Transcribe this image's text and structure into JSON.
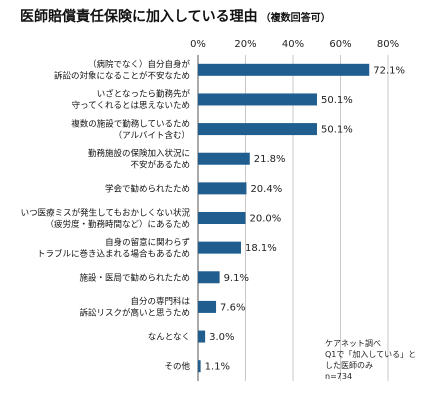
{
  "chart_data": {
    "type": "bar",
    "orientation": "horizontal",
    "title": "医師賠償責任保険に加入している理由",
    "subtitle": "（複数回答可）",
    "xlim": [
      0,
      80
    ],
    "xticks": [
      "0%",
      "20%",
      "40%",
      "60%",
      "80%"
    ],
    "grid": true,
    "bar_color": "#1f5e8e",
    "categories": [
      "（病院でなく）自分自身が\n訴訟の対象になることが不安なため",
      "いざとなったら勤務先が\n守ってくれるとは思えないため",
      "複数の施設で勤務しているため\n（アルバイト含む）",
      "勤務施設の保険加入状況に\n不安があるため",
      "学会で勧められたため",
      "いつ医療ミスが発生してもおかしくない状況\n（疲労度・勤務時間など）にあるため",
      "自身の留意に関わらず\nトラブルに巻き込まれる場合もあるため",
      "施設・医局で勧められたため",
      "自分の専門科は\n訴訟リスクが高いと思うため",
      "なんとなく",
      "その他"
    ],
    "values": [
      72.1,
      50.1,
      50.1,
      21.8,
      20.4,
      20.0,
      18.1,
      9.1,
      7.6,
      3.0,
      1.1
    ],
    "value_labels": [
      "72.1%",
      "50.1%",
      "50.1%",
      "21.8%",
      "20.4%",
      "20.0%",
      "18.1%",
      "9.1%",
      "7.6%",
      "3.0%",
      "1.1%"
    ]
  },
  "source_note": [
    "ケアネット調べ",
    "Q1で「加入している」と",
    "した医師のみ",
    "n=734"
  ]
}
